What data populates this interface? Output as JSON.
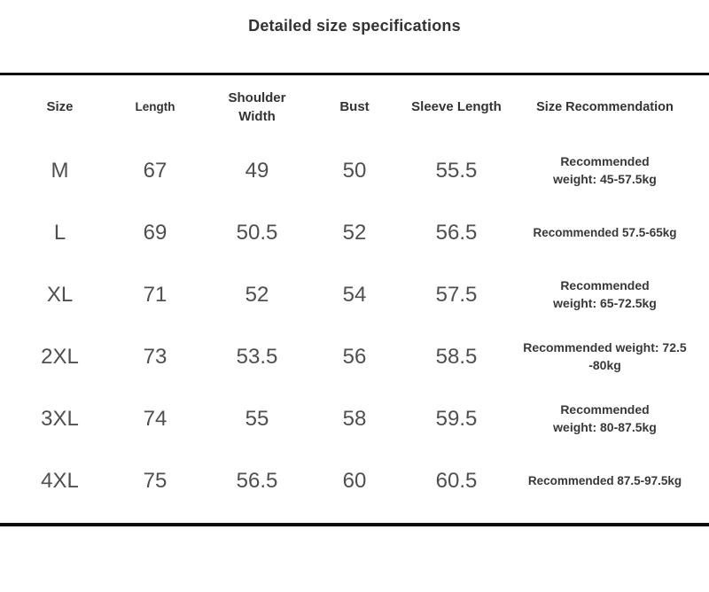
{
  "page": {
    "title": "Detailed size specifications"
  },
  "colors": {
    "background": "#ffffff",
    "rule_line": "#0b0b0b",
    "title_text": "#333333",
    "header_text": "#333333",
    "value_text": "#4f4f4f",
    "recommendation_text": "#383838"
  },
  "table": {
    "headers": [
      {
        "label": "Size"
      },
      {
        "label": "Length"
      },
      {
        "label": "Shoulder Width"
      },
      {
        "label": "Bust"
      },
      {
        "label": "Sleeve Length"
      },
      {
        "label": "Size Recommendation"
      }
    ],
    "rows": [
      {
        "size": "M",
        "length": "67",
        "shoulder_width": "49",
        "bust": "50",
        "sleeve_length": "55.5",
        "recommendation": [
          "Recommended",
          "weight: 45-57.5kg"
        ]
      },
      {
        "size": "L",
        "length": "69",
        "shoulder_width": "50.5",
        "bust": "52",
        "sleeve_length": "56.5",
        "recommendation": [
          "Recommended 57.5-65kg"
        ]
      },
      {
        "size": "XL",
        "length": "71",
        "shoulder_width": "52",
        "bust": "54",
        "sleeve_length": "57.5",
        "recommendation": [
          "Recommended",
          "weight: 65-72.5kg"
        ]
      },
      {
        "size": "2XL",
        "length": "73",
        "shoulder_width": "53.5",
        "bust": "56",
        "sleeve_length": "58.5",
        "recommendation": [
          "Recommended weight: 72.5",
          "-80kg"
        ]
      },
      {
        "size": "3XL",
        "length": "74",
        "shoulder_width": "55",
        "bust": "58",
        "sleeve_length": "59.5",
        "recommendation": [
          "Recommended",
          "weight: 80-87.5kg"
        ]
      },
      {
        "size": "4XL",
        "length": "75",
        "shoulder_width": "56.5",
        "bust": "60",
        "sleeve_length": "60.5",
        "recommendation": [
          "Recommended 87.5-97.5kg"
        ]
      }
    ]
  }
}
